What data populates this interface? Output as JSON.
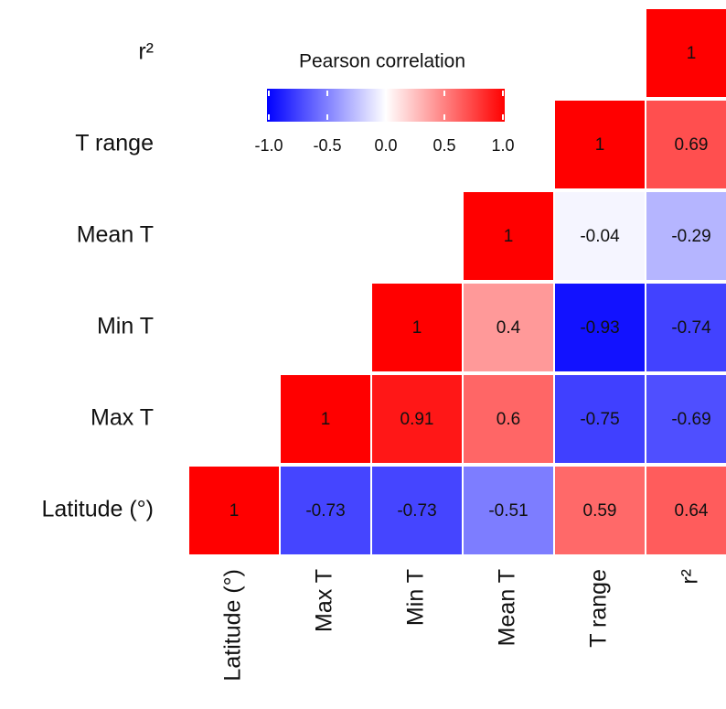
{
  "chart_data": {
    "type": "heatmap",
    "categories": [
      "Latitude (°)",
      "Max T",
      "Min T",
      "Mean T",
      "T range",
      "r²"
    ],
    "z": [
      [
        1,
        -0.73,
        -0.73,
        -0.51,
        0.59,
        0.64
      ],
      [
        null,
        1,
        0.91,
        0.6,
        -0.75,
        -0.69
      ],
      [
        null,
        null,
        1,
        0.4,
        -0.93,
        -0.74
      ],
      [
        null,
        null,
        null,
        1,
        -0.04,
        -0.29
      ],
      [
        null,
        null,
        null,
        null,
        1,
        0.69
      ],
      [
        null,
        null,
        null,
        null,
        null,
        1
      ]
    ],
    "colorbar_title": "Pearson correlation",
    "colorscale": [
      "#0000ff",
      "#ffffff",
      "#ff0000"
    ],
    "zlim": [
      -1,
      1
    ],
    "colorbar_ticks": [
      {
        "value": -1,
        "label": "-1.0"
      },
      -0.5,
      {
        "value": 0,
        "label": "0.0"
      },
      0.5,
      {
        "value": 1,
        "label": "1.0"
      }
    ]
  }
}
